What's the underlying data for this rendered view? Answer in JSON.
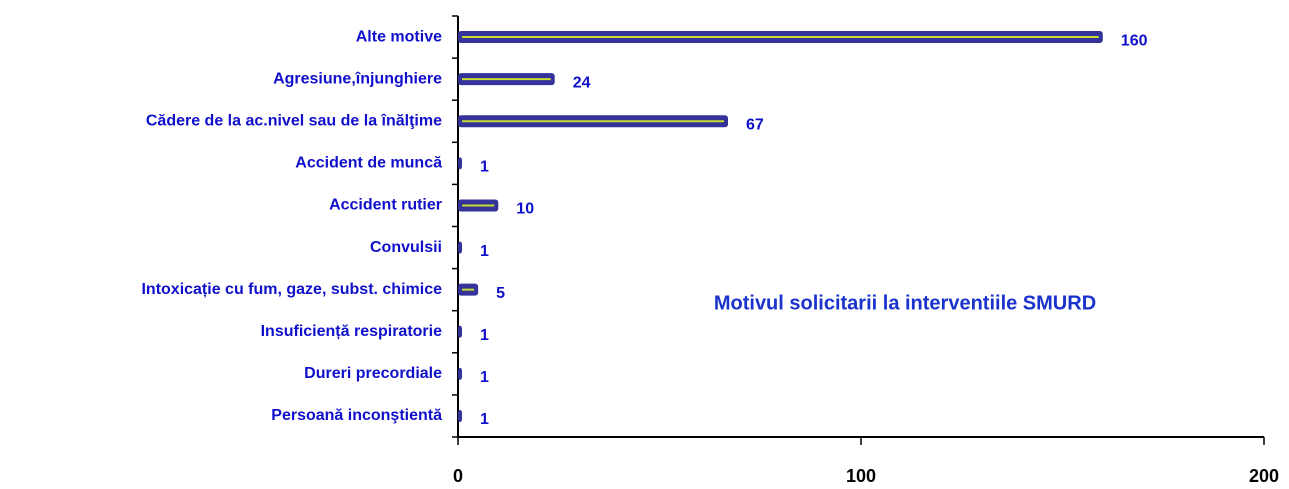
{
  "chart_data": {
    "type": "barh",
    "annotation": "Motivul solicitarii la interventiile SMURD",
    "categories": [
      "Alte motive",
      "Agresiune,înjunghiere",
      "Cădere de la ac.nivel sau de la înălţime",
      "Accident de muncă",
      "Accident rutier",
      "Convulsii",
      "Intoxicație cu fum, gaze, subst. chimice",
      "Insuficiență respiratorie",
      "Dureri precordiale",
      "Persoană inconştientă"
    ],
    "values": [
      160,
      24,
      67,
      1,
      10,
      1,
      5,
      1,
      1,
      1
    ],
    "color": "#333399",
    "highlight_color": "#c8dc30",
    "xlim": [
      0,
      200
    ],
    "xticks": [
      0,
      100,
      200
    ]
  }
}
